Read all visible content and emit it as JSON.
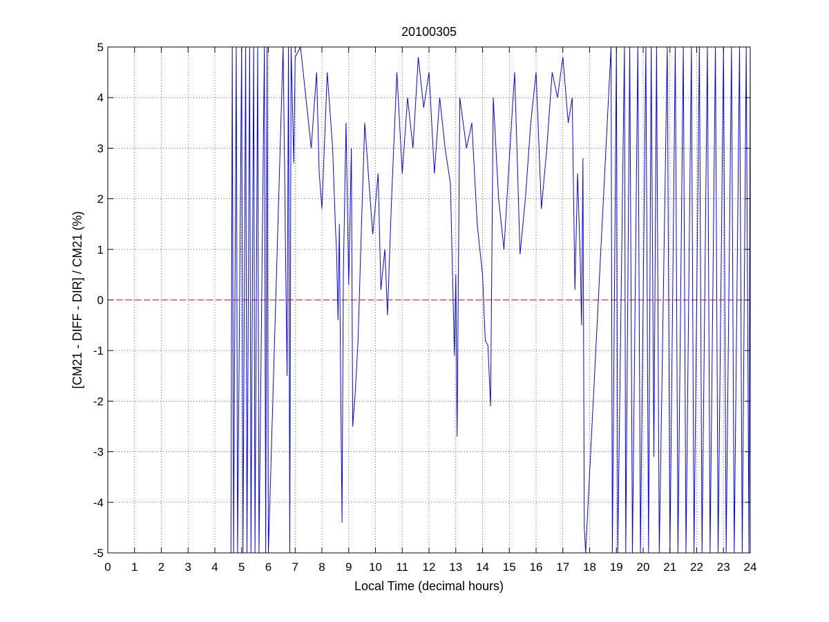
{
  "chart_data": {
    "type": "line",
    "title": "20100305",
    "xlabel": "Local Time (decimal hours)",
    "ylabel": "[CM21 - DIFF - DIR] / CM21 (%)",
    "xlim": [
      0,
      24
    ],
    "ylim": [
      -5,
      5
    ],
    "xticks": [
      0,
      1,
      2,
      3,
      4,
      5,
      6,
      7,
      8,
      9,
      10,
      11,
      12,
      13,
      14,
      15,
      16,
      17,
      18,
      19,
      20,
      21,
      22,
      23,
      24
    ],
    "xtick_labels": [
      "0",
      "1",
      "2",
      "3",
      "4",
      "5",
      "6",
      "7",
      "8",
      "9",
      "10",
      "11",
      "12",
      "13",
      "14",
      "15",
      "16",
      "17",
      "18",
      "19",
      "20",
      "21",
      "22",
      "23",
      "24"
    ],
    "yticks": [
      5,
      4,
      3,
      2,
      1,
      0,
      -1,
      -2,
      -3,
      -4,
      -5
    ],
    "ytick_labels": [
      "5",
      "4",
      "3",
      "2",
      "1",
      "0",
      "-1",
      "-2",
      "-3",
      "-4",
      "-5"
    ],
    "grid": true,
    "grid_style": "dotted",
    "reference_line": {
      "y": 0,
      "color": "#cc0000",
      "style": "dashed"
    },
    "series": [
      {
        "color": "#0000ff",
        "approximate_points": [
          [
            4.6,
            -5
          ],
          [
            4.65,
            5
          ],
          [
            4.7,
            -5
          ],
          [
            4.8,
            5
          ],
          [
            4.85,
            -5
          ],
          [
            5.0,
            5
          ],
          [
            5.05,
            -5
          ],
          [
            5.15,
            5
          ],
          [
            5.2,
            -5
          ],
          [
            5.3,
            5
          ],
          [
            5.35,
            -5
          ],
          [
            5.45,
            5
          ],
          [
            5.5,
            -5
          ],
          [
            5.6,
            5
          ],
          [
            5.65,
            -5
          ],
          [
            5.85,
            5
          ],
          [
            5.9,
            -5
          ],
          [
            5.95,
            5
          ],
          [
            6.0,
            -5
          ],
          [
            6.55,
            5
          ],
          [
            6.6,
            2.8
          ],
          [
            6.65,
            0.5
          ],
          [
            6.7,
            -1.5
          ],
          [
            6.75,
            5
          ],
          [
            6.8,
            -5
          ],
          [
            6.85,
            5
          ],
          [
            6.95,
            2.7
          ],
          [
            7.0,
            4.8
          ],
          [
            7.2,
            5
          ],
          [
            7.4,
            4.0
          ],
          [
            7.6,
            3.0
          ],
          [
            7.8,
            4.5
          ],
          [
            7.9,
            2.5
          ],
          [
            8.0,
            1.8
          ],
          [
            8.2,
            4.5
          ],
          [
            8.4,
            3.0
          ],
          [
            8.5,
            1.5
          ],
          [
            8.55,
            0.9
          ],
          [
            8.6,
            -0.4
          ],
          [
            8.65,
            1.5
          ],
          [
            8.7,
            -1.6
          ],
          [
            8.75,
            -4.4
          ],
          [
            8.8,
            0.5
          ],
          [
            8.9,
            3.5
          ],
          [
            9.0,
            0.3
          ],
          [
            9.1,
            3.0
          ],
          [
            9.15,
            -2.5
          ],
          [
            9.25,
            -1.8
          ],
          [
            9.35,
            -0.8
          ],
          [
            9.45,
            1.0
          ],
          [
            9.6,
            3.5
          ],
          [
            9.8,
            2.0
          ],
          [
            9.9,
            1.3
          ],
          [
            10.1,
            2.5
          ],
          [
            10.2,
            0.2
          ],
          [
            10.35,
            1.0
          ],
          [
            10.45,
            -0.3
          ],
          [
            10.6,
            2.0
          ],
          [
            10.8,
            4.5
          ],
          [
            11.0,
            2.5
          ],
          [
            11.2,
            4.0
          ],
          [
            11.4,
            3.0
          ],
          [
            11.6,
            4.8
          ],
          [
            11.8,
            3.8
          ],
          [
            12.0,
            4.5
          ],
          [
            12.2,
            2.5
          ],
          [
            12.4,
            4.0
          ],
          [
            12.6,
            3.0
          ],
          [
            12.8,
            2.3
          ],
          [
            12.95,
            -1.1
          ],
          [
            13.0,
            0.5
          ],
          [
            13.05,
            -2.7
          ],
          [
            13.15,
            4.0
          ],
          [
            13.4,
            3.0
          ],
          [
            13.6,
            3.5
          ],
          [
            13.8,
            1.5
          ],
          [
            13.9,
            1.0
          ],
          [
            14.0,
            0.5
          ],
          [
            14.1,
            -0.8
          ],
          [
            14.2,
            -0.9
          ],
          [
            14.3,
            -2.1
          ],
          [
            14.4,
            4.0
          ],
          [
            14.6,
            2.0
          ],
          [
            14.8,
            1.0
          ],
          [
            15.0,
            2.8
          ],
          [
            15.2,
            4.5
          ],
          [
            15.4,
            0.9
          ],
          [
            15.6,
            2.0
          ],
          [
            15.8,
            3.5
          ],
          [
            16.0,
            4.5
          ],
          [
            16.2,
            1.8
          ],
          [
            16.4,
            3.0
          ],
          [
            16.6,
            4.5
          ],
          [
            16.8,
            4.0
          ],
          [
            17.0,
            4.8
          ],
          [
            17.2,
            3.5
          ],
          [
            17.35,
            4.0
          ],
          [
            17.45,
            0.2
          ],
          [
            17.55,
            2.5
          ],
          [
            17.65,
            0.8
          ],
          [
            17.7,
            -0.5
          ],
          [
            17.75,
            2.8
          ],
          [
            17.8,
            -4.5
          ],
          [
            17.85,
            -5
          ],
          [
            18.8,
            5
          ],
          [
            18.85,
            -5
          ],
          [
            19.0,
            5
          ],
          [
            19.05,
            -5
          ],
          [
            19.3,
            5
          ],
          [
            19.35,
            -5
          ],
          [
            19.5,
            5
          ],
          [
            19.6,
            -5
          ],
          [
            19.8,
            5
          ],
          [
            19.9,
            -5
          ],
          [
            20.1,
            5
          ],
          [
            20.2,
            -5
          ],
          [
            20.3,
            5
          ],
          [
            20.4,
            -3.1
          ],
          [
            20.5,
            5
          ],
          [
            20.6,
            -5
          ],
          [
            20.9,
            5
          ],
          [
            21.0,
            -5
          ],
          [
            21.2,
            5
          ],
          [
            21.3,
            -5
          ],
          [
            21.5,
            5
          ],
          [
            21.6,
            -5
          ],
          [
            21.8,
            5
          ],
          [
            21.9,
            -5
          ],
          [
            22.1,
            5
          ],
          [
            22.2,
            -5
          ],
          [
            22.4,
            5
          ],
          [
            22.5,
            -5
          ],
          [
            22.7,
            5
          ],
          [
            22.8,
            -5
          ],
          [
            23.0,
            5
          ],
          [
            23.1,
            -5
          ],
          [
            23.3,
            5
          ],
          [
            23.4,
            -5
          ],
          [
            23.6,
            5
          ],
          [
            23.7,
            -5
          ],
          [
            23.85,
            5
          ],
          [
            23.95,
            -5
          ],
          [
            24.0,
            5
          ]
        ]
      }
    ]
  }
}
